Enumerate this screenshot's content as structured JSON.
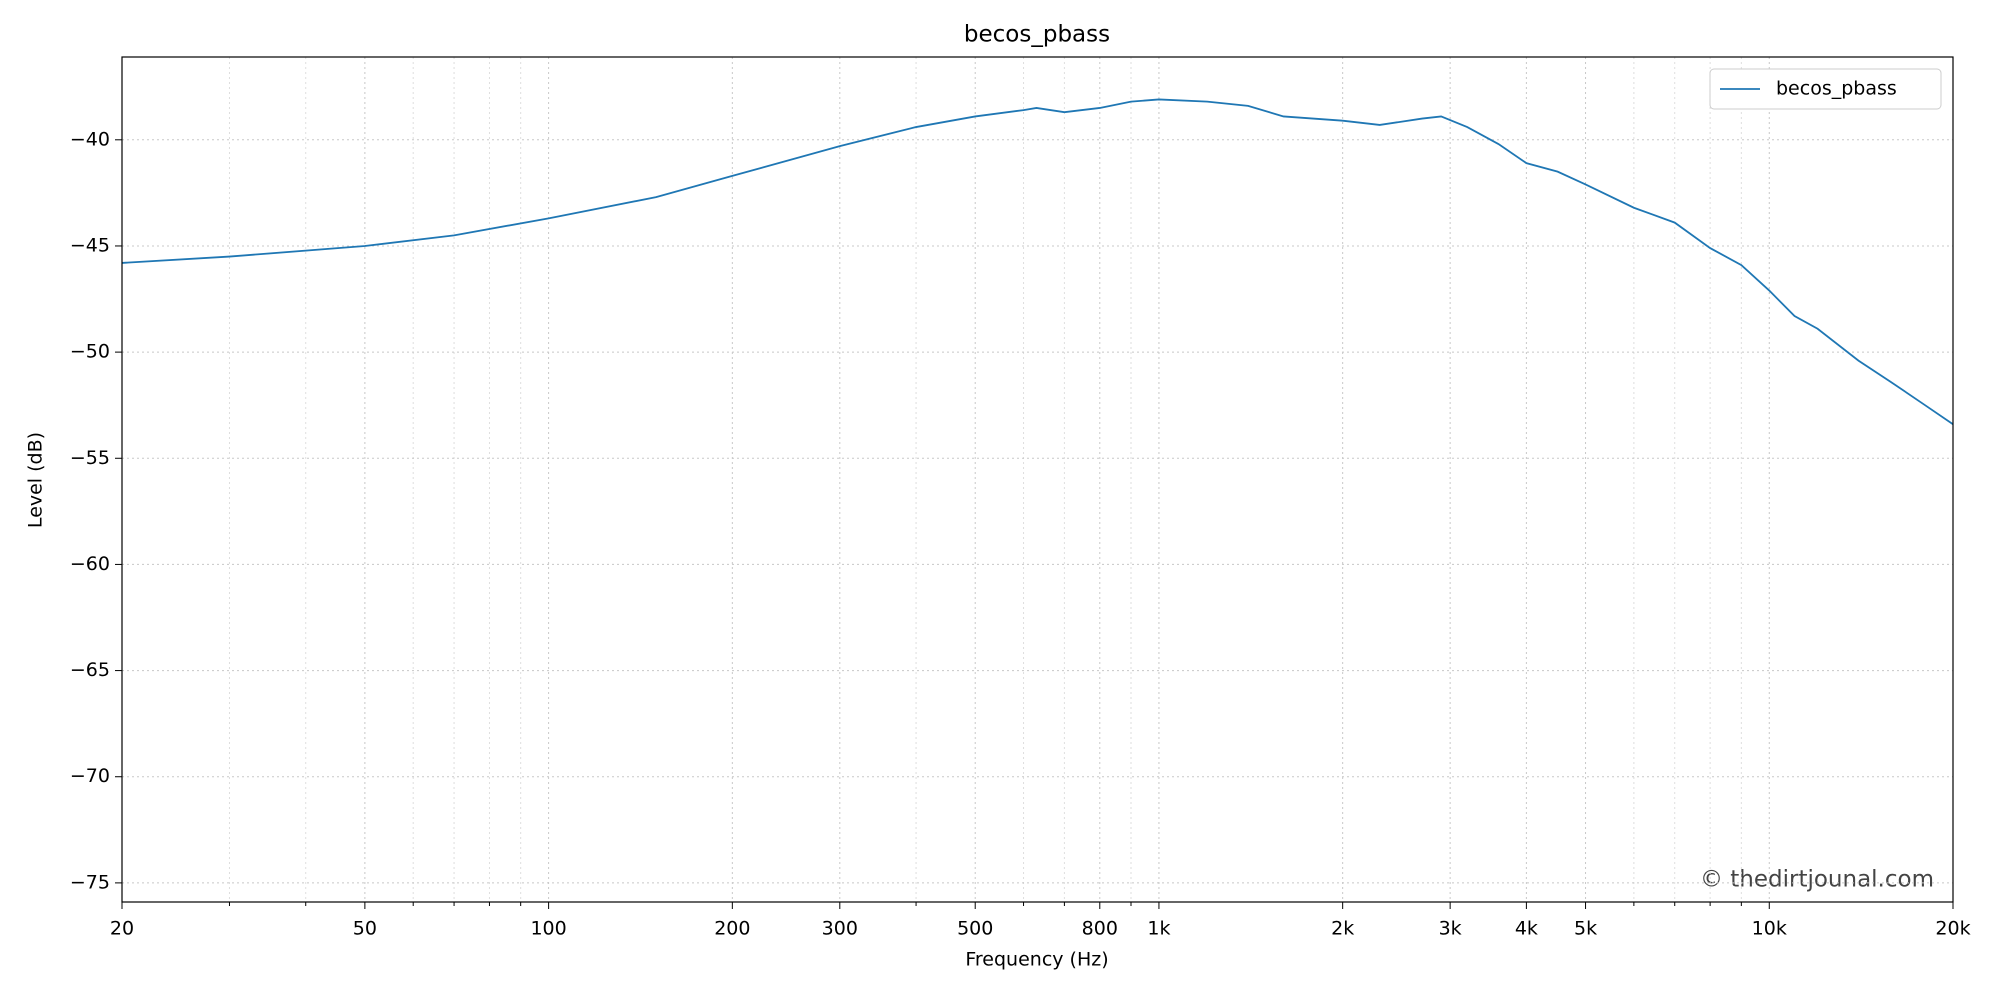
{
  "chart_data": {
    "type": "line",
    "title": "becos_pbass",
    "xlabel": "Frequency (Hz)",
    "ylabel": "Level (dB)",
    "xscale": "log",
    "x": [
      20,
      30,
      50,
      70,
      100,
      150,
      200,
      300,
      400,
      500,
      600,
      630,
      700,
      800,
      900,
      1000,
      1200,
      1400,
      1600,
      2000,
      2300,
      2700,
      2900,
      3200,
      3600,
      4000,
      4500,
      5000,
      6000,
      7000,
      8000,
      9000,
      10000,
      11000,
      12000,
      14000,
      16000,
      18000,
      20000
    ],
    "series": [
      {
        "name": "becos_pbass",
        "color": "#1f77b4",
        "values": [
          -45.8,
          -45.5,
          -45.0,
          -44.5,
          -43.7,
          -42.7,
          -41.7,
          -40.3,
          -39.4,
          -38.9,
          -38.6,
          -38.5,
          -38.7,
          -38.5,
          -38.2,
          -38.1,
          -38.2,
          -38.4,
          -38.9,
          -39.1,
          -39.3,
          -39.0,
          -38.9,
          -39.4,
          -40.2,
          -41.1,
          -41.5,
          -42.1,
          -43.2,
          -43.9,
          -45.1,
          -45.9,
          -47.1,
          -48.3,
          -48.9,
          -50.4,
          -51.5,
          -52.5,
          -53.4
        ]
      }
    ],
    "xlim": [
      20,
      20000
    ],
    "ylim": [
      -75.9,
      -36.1
    ],
    "xticks": [
      20,
      50,
      100,
      200,
      300,
      500,
      800,
      {
        "value": 1000,
        "label": "1k"
      },
      {
        "value": 2000,
        "label": "2k"
      },
      {
        "value": 3000,
        "label": "3k"
      },
      {
        "value": 4000,
        "label": "4k"
      },
      {
        "value": 5000,
        "label": "5k"
      },
      {
        "value": 10000,
        "label": "10k"
      },
      {
        "value": 20000,
        "label": "20k"
      }
    ],
    "xminorticks": [
      30,
      40,
      60,
      70,
      80,
      90,
      400,
      600,
      700,
      900,
      6000,
      7000,
      8000,
      9000
    ],
    "yticks": [
      {
        "value": -40,
        "label": "−40"
      },
      {
        "value": -45,
        "label": "−45"
      },
      {
        "value": -50,
        "label": "−50"
      },
      {
        "value": -55,
        "label": "−55"
      },
      {
        "value": -60,
        "label": "−60"
      },
      {
        "value": -65,
        "label": "−65"
      },
      {
        "value": -70,
        "label": "−70"
      },
      {
        "value": -75,
        "label": "−75"
      }
    ],
    "grid": true,
    "legend": "upper right",
    "watermark": "© thedirtjounal.com"
  }
}
